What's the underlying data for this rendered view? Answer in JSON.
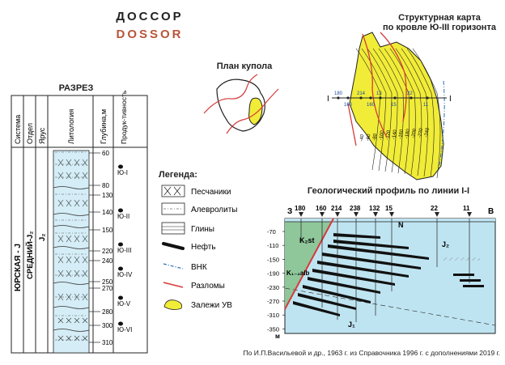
{
  "title": {
    "ru": "ДОССОР",
    "en": "DOSSOR"
  },
  "structural_map": {
    "title_line1": "Структурная карта",
    "title_line2": "по кровле Ю-III горизонта",
    "contours": [
      "-240",
      "-220",
      "-200",
      "-180",
      "-160",
      "-140",
      "-120",
      "-100",
      "-80",
      "-60",
      "-40"
    ],
    "wells": [
      "180",
      "160",
      "214",
      "160",
      "13",
      "15",
      "22",
      "11"
    ],
    "line_ends": [
      "I",
      "I"
    ]
  },
  "dome_plan": {
    "title": "План купола"
  },
  "section": {
    "title": "РАЗРЕЗ",
    "headers": {
      "system": "Система",
      "division": "Отдел",
      "stage": "Ярус",
      "lithology": "Литология",
      "depth": "Глубина,м",
      "productivity": "Продук-тивность"
    },
    "system_value": "ЮРСКАЯ - J",
    "division_value": "СРЕДНИЙ-J₂",
    "stage_value": "J₂",
    "depths": [
      "60",
      "80",
      "130",
      "140",
      "150",
      "220",
      "240",
      "250",
      "270",
      "280",
      "300",
      "310"
    ],
    "horizons": [
      "Ю-I",
      "Ю-II",
      "Ю-III",
      "Ю-IV",
      "Ю-V",
      "Ю-VI"
    ]
  },
  "legend": {
    "title": "Легенда:",
    "items": [
      {
        "key": "sandstone",
        "label": "Песчаники"
      },
      {
        "key": "siltstone",
        "label": "Алевролиты"
      },
      {
        "key": "clay",
        "label": "Глины"
      },
      {
        "key": "oil",
        "label": "Нефть"
      },
      {
        "key": "owc",
        "label": "ВНК"
      },
      {
        "key": "fault",
        "label": "Разломы"
      },
      {
        "key": "deposit",
        "label": "Залежи УВ"
      }
    ]
  },
  "profile": {
    "title": "Геологический профиль по линии I-I",
    "west": "З",
    "east": "В",
    "wells": [
      "180",
      "160",
      "214",
      "238",
      "132",
      "15",
      "22",
      "11"
    ],
    "depths": [
      "-70",
      "-110",
      "-150",
      "-190",
      "-230",
      "-270",
      "-310",
      "-350"
    ],
    "unit": "м",
    "labels": {
      "n": "N",
      "k2st": "K₂st",
      "k1alb": "K₁₋₂alb",
      "j2": "J₂",
      "j1": "J₁"
    },
    "colors": {
      "water": "#bfe4f1",
      "cretaceous": "#8fc69a",
      "oil": "#111111",
      "fault": "#d63a3a"
    }
  },
  "credit": "По И.П.Васильевой и др., 1963 г. из Справочника 1996 г. с дополнениями 2019 г."
}
